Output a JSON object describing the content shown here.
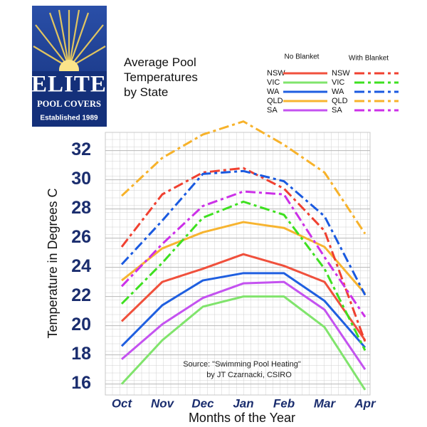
{
  "logo": {
    "name": "ELITE",
    "subname": "POOL COVERS",
    "tagline": "Established 1989"
  },
  "chart_data": {
    "type": "line",
    "title": "Average Pool Temperatures by State",
    "annotation": [
      "Source: \"Swimming Pool Heating\"",
      "by JT Czarnacki, CSIRO"
    ],
    "xlabel": "Months of the Year",
    "ylabel": "Temperature in Degrees C",
    "categories": [
      "Oct",
      "Nov",
      "Dec",
      "Jan",
      "Feb",
      "Mar",
      "Apr"
    ],
    "ylim": [
      15.25,
      33.25
    ],
    "yticks": [
      16,
      18,
      20,
      22,
      24,
      26,
      28,
      30,
      32
    ],
    "grid": true,
    "series_groups": [
      {
        "name": "No Blanket",
        "dash": "solid",
        "series": [
          {
            "name": "NSW",
            "color": "#f0503c",
            "values": [
              20.3,
              23.0,
              23.9,
              24.9,
              24.1,
              23.0,
              19.0
            ]
          },
          {
            "name": "VIC",
            "color": "#80e46c",
            "values": [
              16.0,
              19.0,
              21.3,
              22.0,
              22.0,
              19.9,
              15.6
            ]
          },
          {
            "name": "WA",
            "color": "#1f5fe0",
            "values": [
              18.6,
              21.4,
              23.1,
              23.6,
              23.6,
              21.7,
              18.5
            ]
          },
          {
            "name": "QLD",
            "color": "#f7b430",
            "values": [
              23.1,
              25.3,
              26.4,
              27.1,
              26.7,
              25.4,
              22.2
            ]
          },
          {
            "name": "SA",
            "color": "#c452f0",
            "values": [
              17.7,
              20.1,
              21.9,
              22.9,
              23.0,
              21.1,
              17.0
            ]
          }
        ]
      },
      {
        "name": "With Blanket",
        "dash": "dashdot",
        "series": [
          {
            "name": "NSW",
            "color": "#f04030",
            "values": [
              25.4,
              29.0,
              30.5,
              30.8,
              29.4,
              26.5,
              18.9
            ]
          },
          {
            "name": "VIC",
            "color": "#3ee020",
            "values": [
              21.5,
              24.3,
              27.4,
              28.5,
              27.6,
              23.9,
              18.3
            ]
          },
          {
            "name": "WA",
            "color": "#1a5ae0",
            "values": [
              24.2,
              27.2,
              30.4,
              30.6,
              29.9,
              27.5,
              22.1
            ]
          },
          {
            "name": "QLD",
            "color": "#f7b22a",
            "values": [
              28.9,
              31.5,
              33.1,
              34.0,
              32.4,
              30.5,
              26.3
            ]
          },
          {
            "name": "SA",
            "color": "#cc30e8",
            "values": [
              22.7,
              25.6,
              28.2,
              29.2,
              29.0,
              24.7,
              20.6
            ]
          }
        ]
      }
    ]
  }
}
